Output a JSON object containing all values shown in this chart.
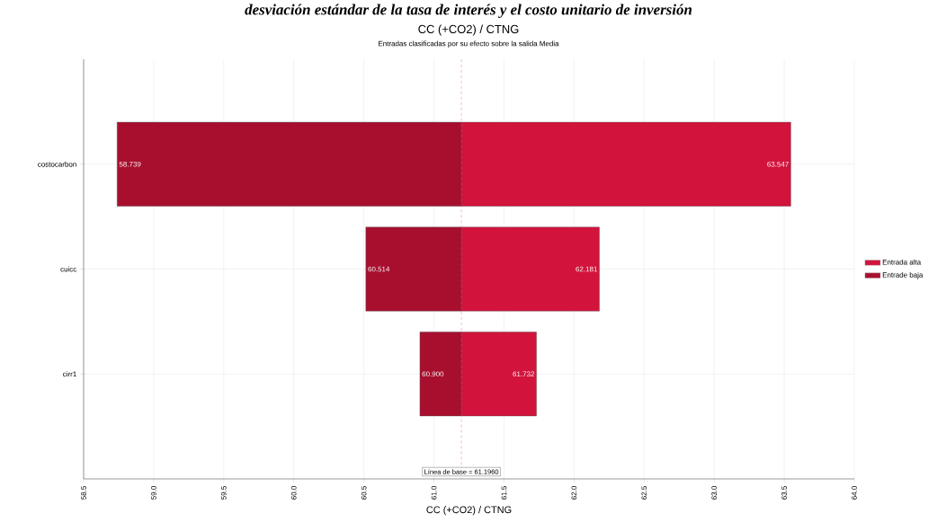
{
  "chart_data": {
    "type": "bar",
    "orientation": "horizontal",
    "title": "CC (+CO2) / CTNG",
    "subtitle": "Entradas clasificadas por su efecto sobre la salida Media",
    "xlabel": "CC (+CO2) / CTNG",
    "annotations": [
      "desviación estándar de la tasa de interés y el costo unitario de inversión"
    ],
    "categories": [
      "costocarbon",
      "cuicc",
      "cirr1"
    ],
    "series": [
      {
        "name": "Entrada alta",
        "color": "#d2143c",
        "base": [
          61.196,
          61.196,
          61.196
        ],
        "values": [
          2.351,
          0.985,
          0.536
        ],
        "value_labels": [
          "63.547",
          "62.181",
          "61.732"
        ]
      },
      {
        "name": "Entrade baja",
        "color": "#a80f2e",
        "base": [
          61.196,
          61.196,
          61.196
        ],
        "values": [
          -2.457,
          -0.682,
          -0.296
        ],
        "value_labels": [
          "58.739",
          "60.514",
          "60.900"
        ]
      }
    ],
    "xlim": [
      58.5,
      64.0
    ],
    "xticks": [
      {
        "value": 58.5,
        "label": "58.5"
      },
      {
        "value": 59.0,
        "label": "59.0"
      },
      {
        "value": 59.5,
        "label": "59.5"
      },
      {
        "value": 60.0,
        "label": "60.0"
      },
      {
        "value": 60.5,
        "label": "60.5"
      },
      {
        "value": 61.0,
        "label": "61.0"
      },
      {
        "value": 61.5,
        "label": "61.5"
      },
      {
        "value": 62.0,
        "label": "62.0"
      },
      {
        "value": 62.5,
        "label": "62.5"
      },
      {
        "value": 63.0,
        "label": "63.0"
      },
      {
        "value": 63.5,
        "label": "63.5"
      },
      {
        "value": 64.0,
        "label": "64.0"
      }
    ],
    "ref_lines": [
      {
        "axis": "x",
        "value": 61.196,
        "label": "Línea de base = 61.1960",
        "color": "#e05060",
        "line_style": "dashed"
      }
    ],
    "grid": true,
    "legend": "right"
  }
}
